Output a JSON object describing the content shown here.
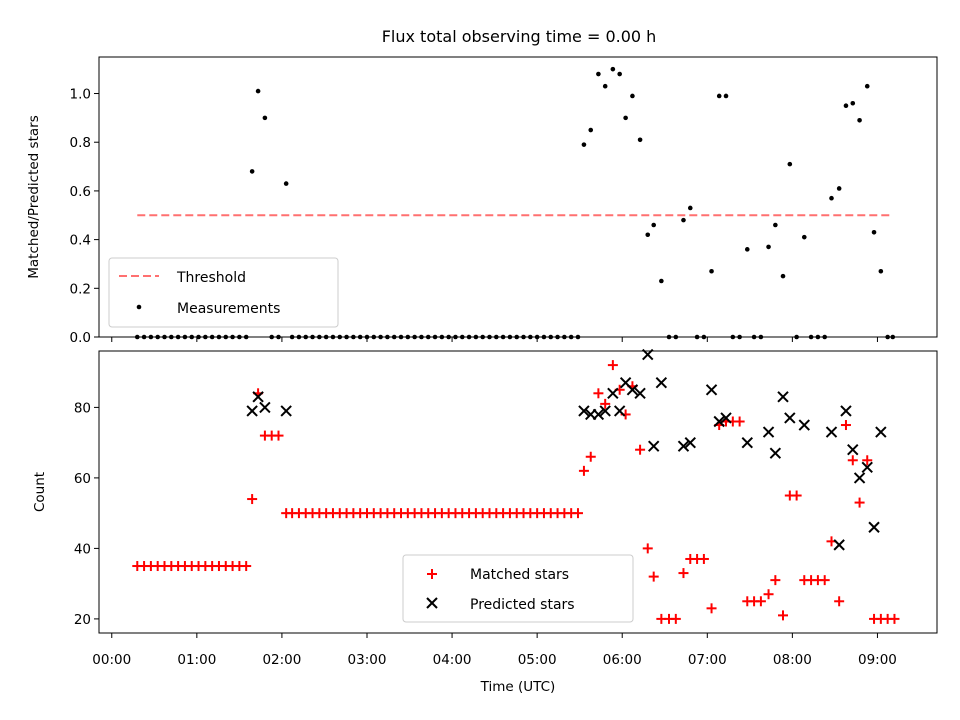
{
  "chart_data": [
    {
      "type": "scatter",
      "title": "Flux total observing time = 0.00 h",
      "xlabel": "",
      "ylabel": "Matched/Predicted stars",
      "ylim": [
        0,
        1.15
      ],
      "yticks": [
        0.0,
        0.2,
        0.4,
        0.6,
        0.8,
        1.0
      ],
      "ytick_labels": [
        "0.0",
        "0.2",
        "0.4",
        "0.6",
        "0.8",
        "1.0"
      ],
      "legend_placement": "lower-left",
      "threshold": {
        "name": "Threshold",
        "value": 0.5,
        "x_start": 0.3,
        "x_end": 9.18,
        "color": "#ff7070"
      },
      "series": [
        {
          "name": "Measurements",
          "color": "#000000",
          "points": [
            [
              0.3,
              0
            ],
            [
              0.38,
              0
            ],
            [
              0.46,
              0
            ],
            [
              0.54,
              0
            ],
            [
              0.62,
              0
            ],
            [
              0.7,
              0
            ],
            [
              0.78,
              0
            ],
            [
              0.86,
              0
            ],
            [
              0.94,
              0
            ],
            [
              1.02,
              0
            ],
            [
              1.1,
              0
            ],
            [
              1.18,
              0
            ],
            [
              1.26,
              0
            ],
            [
              1.34,
              0
            ],
            [
              1.42,
              0
            ],
            [
              1.5,
              0
            ],
            [
              1.58,
              0
            ],
            [
              1.65,
              0.68
            ],
            [
              1.72,
              1.01
            ],
            [
              1.8,
              0.9
            ],
            [
              1.88,
              0
            ],
            [
              1.96,
              0
            ],
            [
              2.05,
              0.63
            ],
            [
              2.12,
              0
            ],
            [
              2.2,
              0
            ],
            [
              2.28,
              0
            ],
            [
              2.36,
              0
            ],
            [
              2.44,
              0
            ],
            [
              2.52,
              0
            ],
            [
              2.6,
              0
            ],
            [
              2.68,
              0
            ],
            [
              2.76,
              0
            ],
            [
              2.84,
              0
            ],
            [
              2.92,
              0
            ],
            [
              3.0,
              0
            ],
            [
              3.08,
              0
            ],
            [
              3.16,
              0
            ],
            [
              3.24,
              0
            ],
            [
              3.32,
              0
            ],
            [
              3.4,
              0
            ],
            [
              3.48,
              0
            ],
            [
              3.56,
              0
            ],
            [
              3.64,
              0
            ],
            [
              3.72,
              0
            ],
            [
              3.8,
              0
            ],
            [
              3.88,
              0
            ],
            [
              3.96,
              0
            ],
            [
              4.04,
              0
            ],
            [
              4.12,
              0
            ],
            [
              4.2,
              0
            ],
            [
              4.28,
              0
            ],
            [
              4.36,
              0
            ],
            [
              4.44,
              0
            ],
            [
              4.52,
              0
            ],
            [
              4.6,
              0
            ],
            [
              4.68,
              0
            ],
            [
              4.76,
              0
            ],
            [
              4.84,
              0
            ],
            [
              4.92,
              0
            ],
            [
              5.0,
              0
            ],
            [
              5.08,
              0
            ],
            [
              5.16,
              0
            ],
            [
              5.24,
              0
            ],
            [
              5.32,
              0
            ],
            [
              5.4,
              0
            ],
            [
              5.48,
              0
            ],
            [
              5.55,
              0.79
            ],
            [
              5.63,
              0.85
            ],
            [
              5.72,
              1.08
            ],
            [
              5.8,
              1.03
            ],
            [
              5.89,
              1.1
            ],
            [
              5.97,
              1.08
            ],
            [
              6.04,
              0.9
            ],
            [
              6.12,
              0.99
            ],
            [
              6.21,
              0.81
            ],
            [
              6.3,
              0.42
            ],
            [
              6.37,
              0.46
            ],
            [
              6.46,
              0.23
            ],
            [
              6.55,
              0
            ],
            [
              6.63,
              0
            ],
            [
              6.72,
              0.48
            ],
            [
              6.8,
              0.53
            ],
            [
              6.88,
              0
            ],
            [
              6.96,
              0
            ],
            [
              7.05,
              0.27
            ],
            [
              7.14,
              0.99
            ],
            [
              7.22,
              0.99
            ],
            [
              7.3,
              0
            ],
            [
              7.38,
              0
            ],
            [
              7.47,
              0.36
            ],
            [
              7.55,
              0
            ],
            [
              7.63,
              0
            ],
            [
              7.72,
              0.37
            ],
            [
              7.8,
              0.46
            ],
            [
              7.89,
              0.25
            ],
            [
              7.97,
              0.71
            ],
            [
              8.05,
              0
            ],
            [
              8.14,
              0.41
            ],
            [
              8.22,
              0
            ],
            [
              8.3,
              0
            ],
            [
              8.38,
              0
            ],
            [
              8.46,
              0.57
            ],
            [
              8.55,
              0.61
            ],
            [
              8.63,
              0.95
            ],
            [
              8.71,
              0.96
            ],
            [
              8.79,
              0.89
            ],
            [
              8.88,
              1.03
            ],
            [
              8.96,
              0.43
            ],
            [
              9.04,
              0.27
            ],
            [
              9.12,
              0
            ],
            [
              9.18,
              0
            ]
          ]
        }
      ]
    },
    {
      "type": "scatter",
      "title": "",
      "xlabel": "Time (UTC)",
      "ylabel": "Count",
      "xlim": [
        -0.15,
        9.7
      ],
      "ylim": [
        16,
        96
      ],
      "xticks": [
        0,
        1,
        2,
        3,
        4,
        5,
        6,
        7,
        8,
        9
      ],
      "xtick_labels": [
        "00:00",
        "01:00",
        "02:00",
        "03:00",
        "04:00",
        "05:00",
        "06:00",
        "07:00",
        "08:00",
        "09:00"
      ],
      "yticks": [
        20,
        40,
        60,
        80
      ],
      "ytick_labels": [
        "20",
        "40",
        "60",
        "80"
      ],
      "legend_placement": "lower-center",
      "series": [
        {
          "name": "Matched stars",
          "marker": "+",
          "color": "#ff0000",
          "points": [
            [
              0.3,
              35
            ],
            [
              0.38,
              35
            ],
            [
              0.46,
              35
            ],
            [
              0.54,
              35
            ],
            [
              0.62,
              35
            ],
            [
              0.7,
              35
            ],
            [
              0.78,
              35
            ],
            [
              0.86,
              35
            ],
            [
              0.94,
              35
            ],
            [
              1.02,
              35
            ],
            [
              1.1,
              35
            ],
            [
              1.18,
              35
            ],
            [
              1.26,
              35
            ],
            [
              1.34,
              35
            ],
            [
              1.42,
              35
            ],
            [
              1.5,
              35
            ],
            [
              1.58,
              35
            ],
            [
              1.65,
              54
            ],
            [
              1.72,
              84
            ],
            [
              1.8,
              72
            ],
            [
              1.88,
              72
            ],
            [
              1.96,
              72
            ],
            [
              2.05,
              50
            ],
            [
              2.12,
              50
            ],
            [
              2.2,
              50
            ],
            [
              2.28,
              50
            ],
            [
              2.36,
              50
            ],
            [
              2.44,
              50
            ],
            [
              2.52,
              50
            ],
            [
              2.6,
              50
            ],
            [
              2.68,
              50
            ],
            [
              2.76,
              50
            ],
            [
              2.84,
              50
            ],
            [
              2.92,
              50
            ],
            [
              3.0,
              50
            ],
            [
              3.08,
              50
            ],
            [
              3.16,
              50
            ],
            [
              3.24,
              50
            ],
            [
              3.32,
              50
            ],
            [
              3.4,
              50
            ],
            [
              3.48,
              50
            ],
            [
              3.56,
              50
            ],
            [
              3.64,
              50
            ],
            [
              3.72,
              50
            ],
            [
              3.8,
              50
            ],
            [
              3.88,
              50
            ],
            [
              3.96,
              50
            ],
            [
              4.04,
              50
            ],
            [
              4.12,
              50
            ],
            [
              4.2,
              50
            ],
            [
              4.28,
              50
            ],
            [
              4.36,
              50
            ],
            [
              4.44,
              50
            ],
            [
              4.52,
              50
            ],
            [
              4.6,
              50
            ],
            [
              4.68,
              50
            ],
            [
              4.76,
              50
            ],
            [
              4.84,
              50
            ],
            [
              4.92,
              50
            ],
            [
              5.0,
              50
            ],
            [
              5.08,
              50
            ],
            [
              5.16,
              50
            ],
            [
              5.24,
              50
            ],
            [
              5.32,
              50
            ],
            [
              5.4,
              50
            ],
            [
              5.48,
              50
            ],
            [
              5.55,
              62
            ],
            [
              5.63,
              66
            ],
            [
              5.72,
              84
            ],
            [
              5.8,
              81
            ],
            [
              5.89,
              92
            ],
            [
              5.97,
              85
            ],
            [
              6.04,
              78
            ],
            [
              6.12,
              86
            ],
            [
              6.21,
              68
            ],
            [
              6.3,
              40
            ],
            [
              6.37,
              32
            ],
            [
              6.46,
              20
            ],
            [
              6.55,
              20
            ],
            [
              6.63,
              20
            ],
            [
              6.72,
              33
            ],
            [
              6.8,
              37
            ],
            [
              6.88,
              37
            ],
            [
              6.96,
              37
            ],
            [
              7.05,
              23
            ],
            [
              7.14,
              75
            ],
            [
              7.22,
              76
            ],
            [
              7.3,
              76
            ],
            [
              7.38,
              76
            ],
            [
              7.47,
              25
            ],
            [
              7.55,
              25
            ],
            [
              7.63,
              25
            ],
            [
              7.72,
              27
            ],
            [
              7.8,
              31
            ],
            [
              7.89,
              21
            ],
            [
              7.97,
              55
            ],
            [
              8.05,
              55
            ],
            [
              8.14,
              31
            ],
            [
              8.22,
              31
            ],
            [
              8.3,
              31
            ],
            [
              8.38,
              31
            ],
            [
              8.46,
              42
            ],
            [
              8.55,
              25
            ],
            [
              8.63,
              75
            ],
            [
              8.71,
              65
            ],
            [
              8.79,
              53
            ],
            [
              8.88,
              65
            ],
            [
              8.96,
              20
            ],
            [
              9.04,
              20
            ],
            [
              9.12,
              20
            ],
            [
              9.2,
              20
            ]
          ]
        },
        {
          "name": "Predicted stars",
          "marker": "x",
          "color": "#000000",
          "points": [
            [
              1.65,
              79
            ],
            [
              1.72,
              83
            ],
            [
              1.8,
              80
            ],
            [
              2.05,
              79
            ],
            [
              5.55,
              79
            ],
            [
              5.63,
              78
            ],
            [
              5.72,
              78
            ],
            [
              5.8,
              79
            ],
            [
              5.89,
              84
            ],
            [
              5.97,
              79
            ],
            [
              6.04,
              87
            ],
            [
              6.12,
              85
            ],
            [
              6.21,
              84
            ],
            [
              6.3,
              95
            ],
            [
              6.37,
              69
            ],
            [
              6.46,
              87
            ],
            [
              6.72,
              69
            ],
            [
              6.8,
              70
            ],
            [
              7.05,
              85
            ],
            [
              7.14,
              76
            ],
            [
              7.22,
              77
            ],
            [
              7.47,
              70
            ],
            [
              7.72,
              73
            ],
            [
              7.8,
              67
            ],
            [
              7.89,
              83
            ],
            [
              7.97,
              77
            ],
            [
              8.14,
              75
            ],
            [
              8.46,
              73
            ],
            [
              8.55,
              41
            ],
            [
              8.63,
              79
            ],
            [
              8.71,
              68
            ],
            [
              8.79,
              60
            ],
            [
              8.88,
              63
            ],
            [
              8.96,
              46
            ],
            [
              9.04,
              73
            ]
          ]
        }
      ]
    }
  ]
}
